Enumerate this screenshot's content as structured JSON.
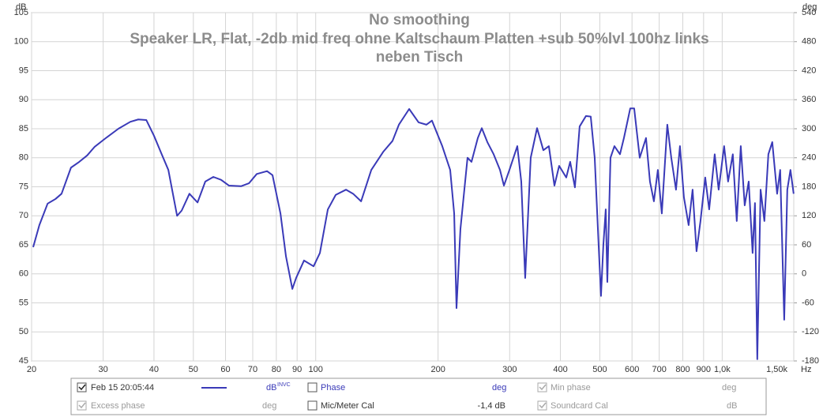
{
  "chart_data": {
    "type": "line",
    "title": "No smoothing",
    "subtitle_lines": [
      "Speaker LR, Flat, -2db mid freq ohne Kaltschaum Platten +sub 50%lvl 100hz links",
      "neben Tisch"
    ],
    "ylabel": "dB",
    "y2label": "deg",
    "xlabel": "Hz",
    "xscale": "log",
    "grid": true,
    "xlim": [
      20,
      1500
    ],
    "ylim": [
      45,
      105
    ],
    "y2lim": [
      -180,
      540
    ],
    "xticks": [
      20,
      30,
      40,
      50,
      60,
      70,
      80,
      90,
      100,
      200,
      300,
      400,
      500,
      600,
      700,
      800,
      900,
      {
        "value": 1000,
        "label": "1,0k"
      },
      {
        "value": 1500,
        "label": "1,50k"
      }
    ],
    "yticks": [
      45,
      50,
      55,
      60,
      65,
      70,
      75,
      80,
      85,
      90,
      95,
      100,
      105
    ],
    "y2ticks": [
      -180,
      -120,
      -60,
      0,
      60,
      120,
      180,
      240,
      300,
      360,
      420,
      480,
      540
    ],
    "x": [
      20.18,
      20.9,
      21.9,
      22.9,
      23.7,
      25.0,
      26.2,
      27.4,
      28.6,
      30.6,
      32.7,
      35.0,
      36.6,
      38.3,
      40.0,
      41.8,
      43.4,
      45.6,
      46.8,
      48.9,
      51.2,
      53.5,
      56.0,
      58.5,
      61.2,
      65.5,
      68.5,
      71.6,
      75.9,
      78.3,
      81.9,
      84.5,
      87.6,
      89.5,
      93.6,
      98.8,
      102.4,
      107.1,
      112.0,
      118.7,
      123.6,
      129.3,
      137.0,
      146.5,
      154.5,
      160.2,
      169.8,
      179.1,
      187.3,
      193.2,
      197.6,
      204.8,
      214.2,
      219.1,
      222.0,
      227.0,
      236.3,
      241.7,
      250.5,
      256.2,
      264.4,
      274.0,
      284.0,
      290.4,
      299.6,
      313.3,
      320.4,
      327.6,
      338.0,
      350.4,
      363.1,
      374.6,
      386.6,
      397.1,
      413.4,
      422.7,
      434.2,
      446.0,
      462.3,
      474.9,
      485.7,
      496.6,
      503.3,
      510.1,
      517.0,
      521.7,
      531.1,
      543.1,
      560.4,
      573.1,
      594.0,
      607.4,
      626.8,
      649.5,
      664.2,
      679.2,
      694.6,
      710.3,
      732.8,
      749.4,
      769.8,
      787.2,
      805.0,
      826.9,
      845.6,
      864.7,
      884.3,
      908.4,
      928.9,
      958.5,
      980.2,
      1011,
      1034,
      1062,
      1086,
      1111,
      1136,
      1162,
      1188,
      1204,
      1220,
      1243,
      1270,
      1299,
      1328,
      1365,
      1389,
      1421,
      1446,
      1472,
      1499
    ],
    "series": [
      {
        "name": "Feb 15 20:05:44",
        "color": "#3a3ab8",
        "values": [
          64.6,
          68.4,
          72.1,
          72.9,
          73.8,
          78.3,
          79.3,
          80.4,
          81.9,
          83.5,
          85.0,
          86.2,
          86.6,
          86.5,
          83.8,
          80.6,
          77.9,
          70.0,
          70.9,
          73.8,
          72.3,
          75.9,
          76.7,
          76.2,
          75.2,
          75.1,
          75.6,
          77.2,
          77.7,
          77.0,
          70.4,
          63.0,
          57.4,
          59.3,
          62.3,
          61.3,
          63.6,
          71.1,
          73.6,
          74.5,
          73.8,
          72.5,
          77.9,
          81.0,
          82.9,
          85.7,
          88.4,
          86.1,
          85.7,
          86.4,
          84.7,
          82.0,
          77.9,
          70.4,
          54.1,
          67.7,
          80.0,
          79.3,
          83.4,
          85.1,
          82.7,
          80.6,
          77.9,
          75.2,
          77.9,
          82.0,
          75.9,
          59.3,
          80.0,
          85.1,
          81.3,
          82.0,
          75.2,
          78.6,
          76.6,
          79.3,
          74.9,
          85.4,
          87.2,
          87.1,
          80.0,
          65.0,
          56.2,
          65.0,
          71.1,
          58.6,
          80.0,
          82.0,
          80.6,
          83.4,
          88.5,
          88.5,
          80.0,
          83.4,
          75.9,
          72.5,
          77.9,
          70.4,
          85.7,
          80.0,
          74.5,
          82.0,
          73.2,
          68.4,
          74.5,
          63.9,
          69.1,
          76.6,
          71.1,
          80.6,
          74.5,
          82.0,
          75.9,
          80.6,
          69.1,
          82.0,
          71.8,
          75.9,
          63.6,
          72.2,
          45.3,
          74.5,
          69.1,
          80.6,
          82.7,
          73.8,
          77.9,
          52.1,
          74.5,
          77.9,
          73.8
        ]
      }
    ]
  },
  "legend_panel": {
    "row1": {
      "series_label": "Feb 15 20:05:44",
      "series_unit": "dB",
      "series_unit_sup": "INVC",
      "phase_label": "Phase",
      "phase_unit": "deg",
      "min_phase_label": "Min phase",
      "min_phase_unit": "deg"
    },
    "row2": {
      "excess_label": "Excess phase",
      "excess_unit": "deg",
      "cal_label": "Mic/Meter Cal",
      "cal_value": "-1,4 dB",
      "soundcard_label": "Soundcard Cal",
      "soundcard_unit": "dB"
    }
  }
}
